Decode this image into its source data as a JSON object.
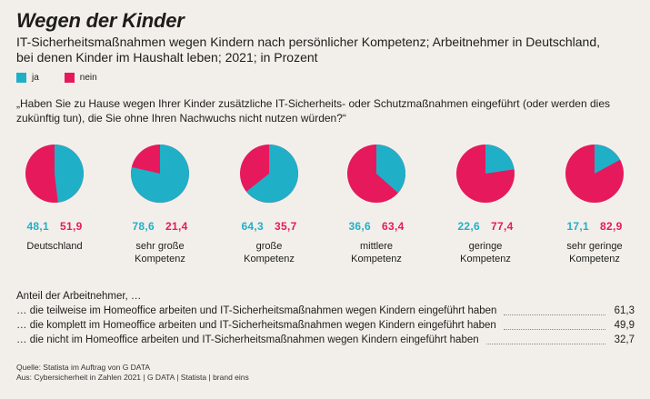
{
  "header": {
    "title": "Wegen der Kinder",
    "subtitle": "IT-Sicherheitsmaßnahmen wegen Kindern nach persönlicher Kompetenz; Arbeitnehmer in Deutschland, bei denen Kinder im Haushalt leben; 2021; in Prozent"
  },
  "legend": {
    "ja": "ja",
    "nein": "nein"
  },
  "colors": {
    "ja": "#1fb0c8",
    "nein": "#e6195d"
  },
  "question": "„Haben Sie zu Hause wegen Ihrer Kinder zusätzliche IT-Sicherheits- oder Schutzmaßnahmen eingeführt (oder werden dies zukünftig tun), die Sie ohne Ihren Nachwuchs nicht nutzen würden?“",
  "chart_data": {
    "type": "pie",
    "series": [
      {
        "category": "Deutschland",
        "ja": 48.1,
        "nein": 51.9,
        "ja_label": "48,1",
        "nein_label": "51,9"
      },
      {
        "category": "sehr große Kompetenz",
        "ja": 78.6,
        "nein": 21.4,
        "ja_label": "78,6",
        "nein_label": "21,4"
      },
      {
        "category": "große Kompetenz",
        "ja": 64.3,
        "nein": 35.7,
        "ja_label": "64,3",
        "nein_label": "35,7"
      },
      {
        "category": "mittlere Kompetenz",
        "ja": 36.6,
        "nein": 63.4,
        "ja_label": "36,6",
        "nein_label": "63,4"
      },
      {
        "category": "geringe Kompetenz",
        "ja": 22.6,
        "nein": 77.4,
        "ja_label": "22,6",
        "nein_label": "77,4"
      },
      {
        "category": "sehr geringe Kompetenz",
        "ja": 17.1,
        "nein": 82.9,
        "ja_label": "17,1",
        "nein_label": "82,9"
      }
    ],
    "category_lines": [
      [
        "Deutschland"
      ],
      [
        "sehr große",
        "Kompetenz"
      ],
      [
        "große",
        "Kompetenz"
      ],
      [
        "mittlere",
        "Kompetenz"
      ],
      [
        "geringe",
        "Kompetenz"
      ],
      [
        "sehr geringe",
        "Kompetenz"
      ]
    ]
  },
  "share": {
    "title": "Anteil der Arbeitnehmer, …",
    "rows": [
      {
        "text": "… die teilweise im Homeoffice arbeiten und IT-Sicherheitsmaßnahmen wegen Kindern eingeführt haben",
        "value": "61,3"
      },
      {
        "text": "… die komplett im Homeoffice arbeiten und IT-Sicherheitsmaßnahmen wegen Kindern eingeführt haben",
        "value": "49,9"
      },
      {
        "text": "… die nicht im Homeoffice arbeiten und IT-Sicherheitsmaßnahmen wegen Kindern eingeführt haben",
        "value": "32,7"
      }
    ]
  },
  "source": {
    "line1": "Quelle: Statista im Auftrag von G DATA",
    "line2": "Aus: Cybersicherheit in Zahlen 2021 | G DATA | Statista | brand eins"
  }
}
